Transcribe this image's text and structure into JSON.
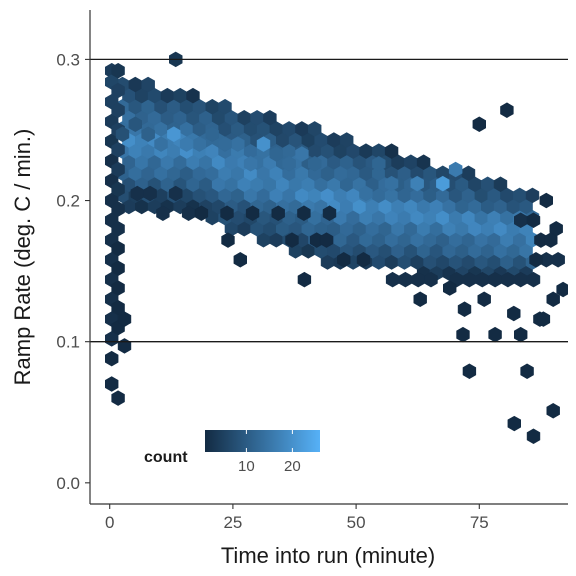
{
  "chart_data": {
    "type": "heatmap",
    "subtype": "hexbin",
    "xlabel": "Time into run (minute)",
    "ylabel": "Ramp Rate (deg. C / min.)",
    "xlim": [
      -4,
      93
    ],
    "ylim": [
      -0.015,
      0.335
    ],
    "x_ticks": [
      0,
      25,
      50,
      75
    ],
    "x_tick_labels": [
      "0",
      "25",
      "50",
      "75"
    ],
    "y_ticks": [
      0.0,
      0.1,
      0.2,
      0.3
    ],
    "y_tick_labels": [
      "0.0",
      "0.1",
      "0.2",
      "0.3"
    ],
    "reference_lines_y": [
      0.1,
      0.3
    ],
    "grid": false,
    "colors": {
      "low": "#132b43",
      "high": "#56b1f7",
      "ref_line": "#1a1a1a",
      "axis": "#333333"
    },
    "legend": {
      "title": "count",
      "position": "inside-bottom-left",
      "range": [
        1,
        26
      ],
      "breaks": [
        10,
        20
      ],
      "break_labels": [
        "10",
        "20"
      ]
    },
    "hex_width": 2.6,
    "points": [
      [
        0.4,
        0.292,
        4
      ],
      [
        0.4,
        0.284,
        6
      ],
      [
        0.4,
        0.27,
        5
      ],
      [
        0.4,
        0.256,
        4
      ],
      [
        0.4,
        0.242,
        3
      ],
      [
        0.4,
        0.228,
        2
      ],
      [
        0.4,
        0.214,
        2
      ],
      [
        0.4,
        0.2,
        2
      ],
      [
        0.4,
        0.186,
        2
      ],
      [
        0.4,
        0.172,
        2
      ],
      [
        0.4,
        0.158,
        2
      ],
      [
        0.4,
        0.144,
        2
      ],
      [
        0.4,
        0.13,
        2
      ],
      [
        0.4,
        0.116,
        2
      ],
      [
        0.4,
        0.102,
        2
      ],
      [
        0.4,
        0.088,
        1
      ],
      [
        0.4,
        0.07,
        1
      ],
      [
        1.7,
        0.11,
        1
      ],
      [
        1.7,
        0.124,
        1
      ],
      [
        1.7,
        0.138,
        1
      ],
      [
        1.7,
        0.152,
        1
      ],
      [
        1.7,
        0.166,
        1
      ],
      [
        1.7,
        0.18,
        2
      ],
      [
        1.7,
        0.194,
        2
      ],
      [
        1.7,
        0.208,
        3
      ],
      [
        1.7,
        0.222,
        4
      ],
      [
        1.7,
        0.236,
        5
      ],
      [
        1.7,
        0.25,
        5
      ],
      [
        1.7,
        0.264,
        5
      ],
      [
        1.7,
        0.278,
        5
      ],
      [
        1.7,
        0.292,
        3
      ],
      [
        1.7,
        0.06,
        1
      ],
      [
        3.0,
        0.116,
        1
      ],
      [
        3.0,
        0.097,
        1
      ],
      [
        13.4,
        0.3,
        3
      ],
      [
        75,
        0.254,
        1
      ],
      [
        80.6,
        0.264,
        1
      ],
      [
        5.6,
        0.205,
        2
      ],
      [
        8.2,
        0.205,
        2
      ],
      [
        10.8,
        0.191,
        2
      ],
      [
        13.4,
        0.205,
        2
      ],
      [
        16.0,
        0.191,
        2
      ],
      [
        18.6,
        0.191,
        1
      ],
      [
        23.8,
        0.191,
        1
      ],
      [
        29.0,
        0.191,
        1
      ],
      [
        34.2,
        0.191,
        1
      ],
      [
        39.4,
        0.191,
        1
      ],
      [
        44.6,
        0.191,
        1
      ],
      [
        24,
        0.172,
        1
      ],
      [
        26.5,
        0.158,
        1
      ],
      [
        37,
        0.172,
        1
      ],
      [
        42,
        0.172,
        1
      ],
      [
        47.5,
        0.158,
        1
      ],
      [
        51.5,
        0.158,
        1
      ],
      [
        44,
        0.172,
        1
      ],
      [
        39.5,
        0.144,
        1
      ],
      [
        57.4,
        0.144,
        2
      ],
      [
        60.0,
        0.144,
        2
      ],
      [
        62.6,
        0.144,
        2
      ],
      [
        65.2,
        0.144,
        2
      ],
      [
        70.4,
        0.144,
        2
      ],
      [
        73.0,
        0.144,
        2
      ],
      [
        75.6,
        0.144,
        2
      ],
      [
        78.2,
        0.144,
        2
      ],
      [
        80.8,
        0.144,
        2
      ],
      [
        83.4,
        0.144,
        2
      ],
      [
        86.0,
        0.144,
        2
      ],
      [
        88.6,
        0.158,
        2
      ],
      [
        91.0,
        0.158,
        2
      ],
      [
        69,
        0.138,
        1
      ],
      [
        76,
        0.13,
        1
      ],
      [
        63,
        0.13,
        1
      ],
      [
        72,
        0.123,
        1
      ],
      [
        82,
        0.12,
        1
      ],
      [
        71.7,
        0.105,
        1
      ],
      [
        78.2,
        0.105,
        1
      ],
      [
        83.4,
        0.105,
        1
      ],
      [
        87.3,
        0.116,
        1
      ],
      [
        90,
        0.13,
        1
      ],
      [
        88,
        0.116,
        1
      ],
      [
        92,
        0.137,
        1
      ],
      [
        73.0,
        0.079,
        1
      ],
      [
        84.7,
        0.079,
        1
      ],
      [
        82.1,
        0.042,
        1
      ],
      [
        86.0,
        0.033,
        1
      ],
      [
        90.0,
        0.051,
        1
      ],
      [
        83.4,
        0.186,
        2
      ],
      [
        86.0,
        0.186,
        1
      ],
      [
        88.6,
        0.2,
        1
      ],
      [
        90.6,
        0.18,
        1
      ],
      [
        87.5,
        0.172,
        1
      ],
      [
        86.5,
        0.158,
        1
      ],
      [
        89.5,
        0.172,
        1
      ],
      [
        67.6,
        0.212,
        22
      ],
      [
        70.2,
        0.222,
        16
      ],
      [
        62.4,
        0.212,
        17
      ],
      [
        57.2,
        0.212,
        14
      ],
      [
        54.6,
        0.226,
        12
      ],
      [
        52.0,
        0.205,
        14
      ],
      [
        46.8,
        0.219,
        13
      ],
      [
        44.2,
        0.219,
        11
      ],
      [
        41.6,
        0.226,
        12
      ],
      [
        39.0,
        0.233,
        15
      ],
      [
        36.4,
        0.226,
        13
      ],
      [
        33.8,
        0.233,
        12
      ],
      [
        31.2,
        0.24,
        20
      ],
      [
        28.6,
        0.226,
        15
      ],
      [
        26.0,
        0.24,
        14
      ],
      [
        23.4,
        0.24,
        13
      ],
      [
        20.8,
        0.247,
        12
      ],
      [
        18.2,
        0.24,
        14
      ],
      [
        15.6,
        0.24,
        16
      ],
      [
        13.0,
        0.247,
        21
      ],
      [
        10.4,
        0.24,
        14
      ],
      [
        7.8,
        0.247,
        11
      ],
      [
        5.2,
        0.254,
        9
      ],
      [
        2.6,
        0.247,
        8
      ]
    ]
  }
}
